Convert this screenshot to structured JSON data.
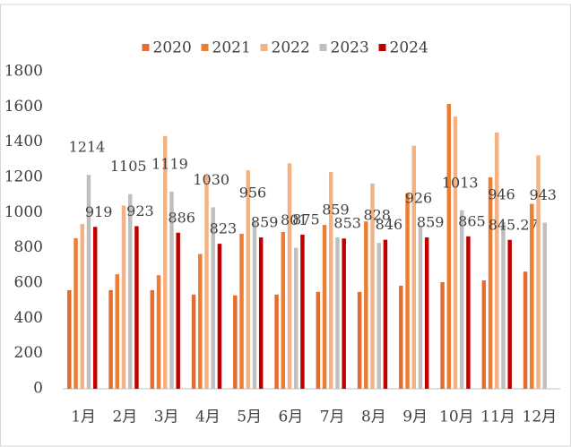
{
  "chart_data": {
    "type": "bar",
    "categories": [
      "1月",
      "2月",
      "3月",
      "4月",
      "5月",
      "6月",
      "7月",
      "8月",
      "9月",
      "10月",
      "11月",
      "12月"
    ],
    "series": [
      {
        "name": "2020",
        "color": "#e46c2c",
        "values": [
          560,
          560,
          560,
          535,
          530,
          535,
          550,
          550,
          585,
          605,
          615,
          665
        ]
      },
      {
        "name": "2021",
        "color": "#ed7d31",
        "values": [
          855,
          650,
          645,
          765,
          880,
          890,
          930,
          950,
          1110,
          1617,
          1200,
          1050
        ]
      },
      {
        "name": "2022",
        "color": "#f4b183",
        "values": [
          935,
          1040,
          1435,
          1210,
          1240,
          1280,
          1230,
          1165,
          1380,
          1545,
          1455,
          1325
        ]
      },
      {
        "name": "2023",
        "color": "#bfbfbf",
        "data_labels": true,
        "values": [
          1214,
          1105,
          1119,
          1030,
          956,
          801,
          859,
          828,
          926,
          1013,
          946,
          943
        ]
      },
      {
        "name": "2024",
        "color": "#c00000",
        "data_labels": true,
        "values": [
          919,
          923,
          886,
          823,
          859,
          875,
          853,
          846,
          859,
          865,
          845.27,
          null
        ]
      }
    ],
    "ylim": [
      0,
      1800
    ],
    "yticks": [
      0,
      200,
      400,
      600,
      800,
      1000,
      1200,
      1400,
      1600,
      1800
    ],
    "grid": false,
    "legend": "top"
  }
}
